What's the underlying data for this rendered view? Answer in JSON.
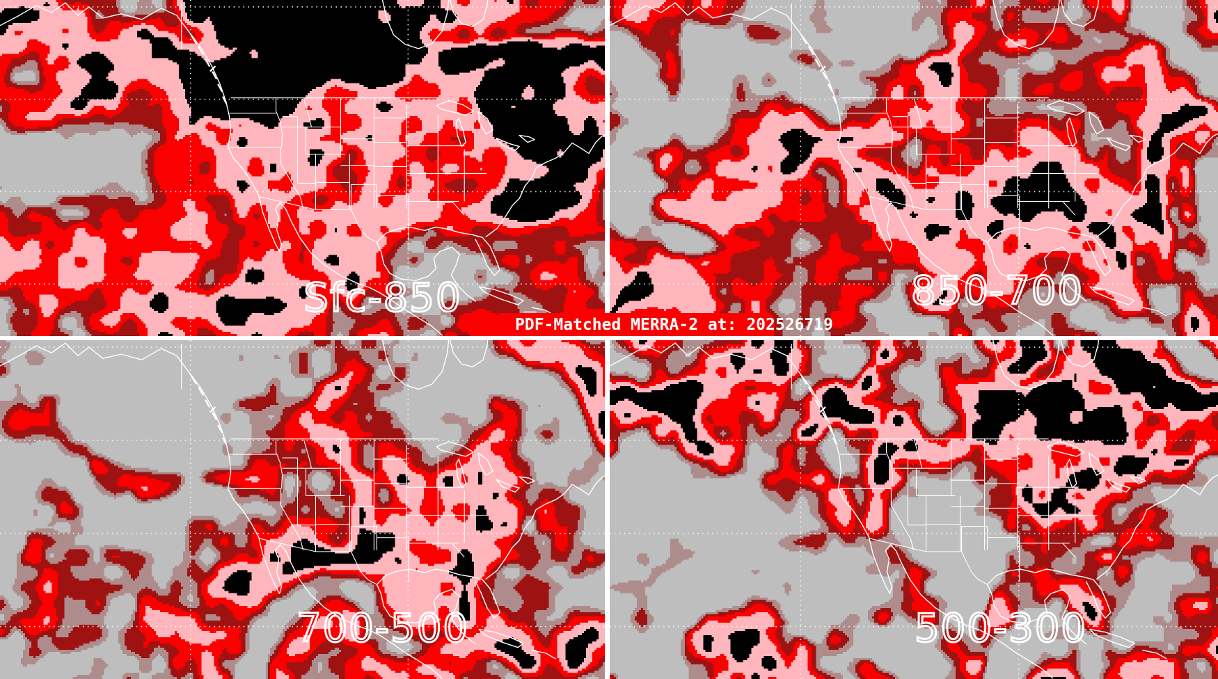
{
  "header": {
    "title_text": "PDF-Matched MERRA-2 at: 202526719",
    "title_bg": "#fa0000",
    "title_color": "#ffffff"
  },
  "panels": [
    {
      "label": "Sfc-850",
      "position": "top-left"
    },
    {
      "label": "850-700",
      "position": "top-right"
    },
    {
      "label": "700-500",
      "position": "bottom-left"
    },
    {
      "label": "500-300",
      "position": "bottom-right"
    }
  ],
  "palette": {
    "gray": "#bebebe",
    "rosy_brown": "#ae8c8c",
    "dark_red": "#9e1212",
    "red": "#fa0000",
    "pink": "#ffb5bc",
    "black": "#000000"
  },
  "map_lines": {
    "region": "North America",
    "coastline_color": "#ffffff",
    "state_border_color": "#ffffff",
    "graticule_color": "#ffffff",
    "graticule_style": "dotted",
    "divider_color": "#ffffff"
  }
}
